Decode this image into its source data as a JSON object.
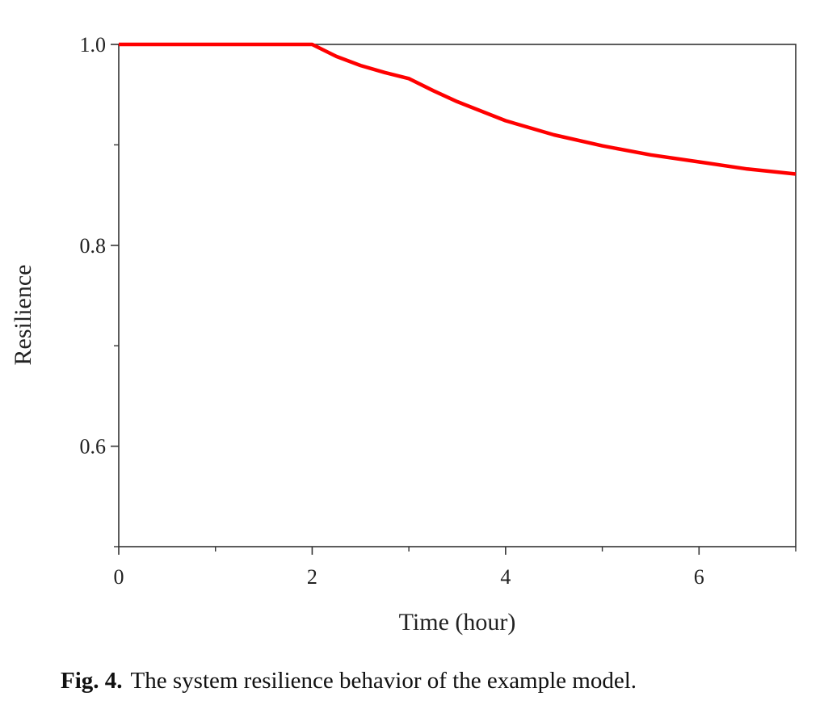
{
  "chart_data": {
    "type": "line",
    "title": "",
    "xlabel": "Time (hour)",
    "ylabel": "Resilience",
    "xlim": [
      0,
      7
    ],
    "ylim": [
      0.5,
      1.0
    ],
    "x_ticks": [
      0,
      2,
      4,
      6
    ],
    "x_tick_labels": [
      "0",
      "2",
      "4",
      "6"
    ],
    "x_minor_ticks": [
      1,
      3,
      5,
      7
    ],
    "y_ticks": [
      0.6,
      0.8,
      1.0
    ],
    "y_tick_labels": [
      "0.6",
      "0.8",
      "1.0"
    ],
    "y_minor_ticks": [
      0.5,
      0.7,
      0.9
    ],
    "grid": false,
    "legend": "none",
    "series": [
      {
        "color": "#ff0000",
        "x": [
          0,
          1,
          2,
          2.25,
          2.5,
          2.75,
          3,
          3.25,
          3.5,
          4,
          4.5,
          5,
          5.5,
          6,
          6.5,
          7
        ],
        "y": [
          1.0,
          1.0,
          1.0,
          0.988,
          0.979,
          0.972,
          0.966,
          0.954,
          0.943,
          0.924,
          0.91,
          0.899,
          0.89,
          0.883,
          0.876,
          0.871
        ]
      }
    ]
  },
  "caption": {
    "label": "Fig. 4.",
    "text": "The system resilience behavior of the example model."
  }
}
